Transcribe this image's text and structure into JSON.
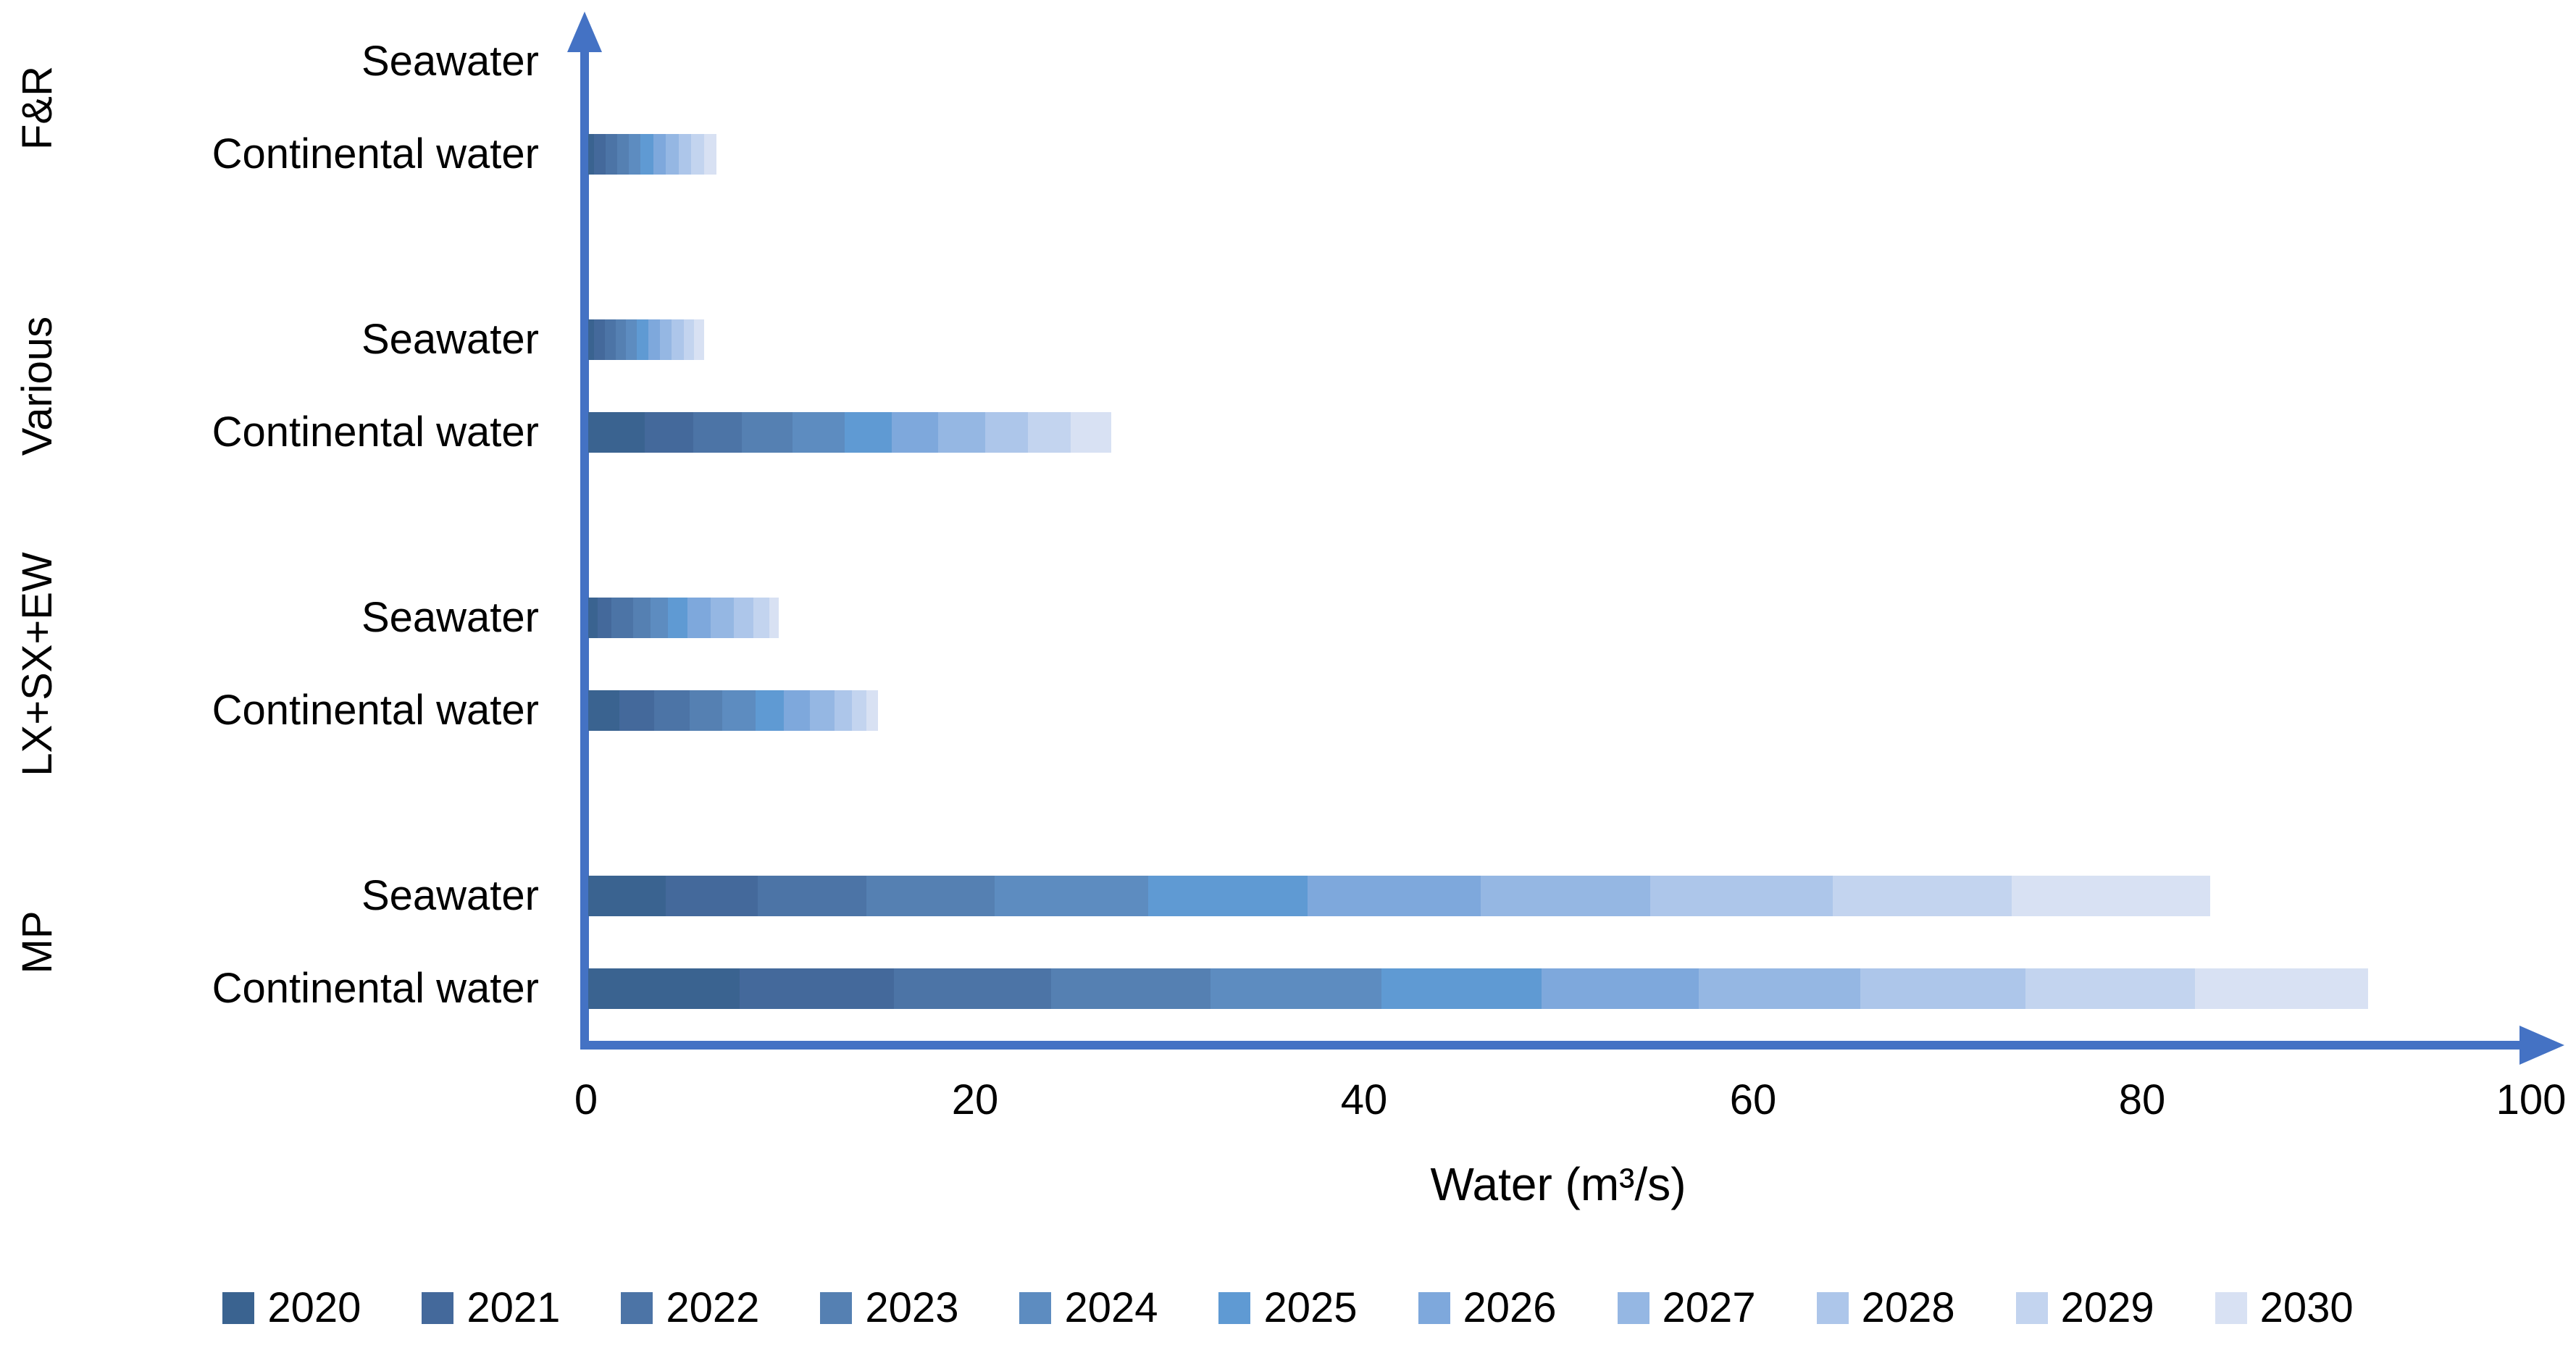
{
  "chart_data": {
    "type": "bar",
    "orientation": "horizontal",
    "stacked": true,
    "xlabel": "Water (m³/s)",
    "xlim": [
      0,
      100
    ],
    "xticks": [
      "0",
      "20",
      "40",
      "60",
      "80",
      "100"
    ],
    "grid": false,
    "legend_position": "bottom",
    "axis_color": "#4472C4",
    "series_years": [
      "2020",
      "2021",
      "2022",
      "2023",
      "2024",
      "2025",
      "2026",
      "2027",
      "2028",
      "2029",
      "2030"
    ],
    "series_colors": [
      "#3A6390",
      "#44699B",
      "#4C74A6",
      "#5580B2",
      "#5D8CC0",
      "#5F9AD3",
      "#7EA8DC",
      "#95B7E3",
      "#ADC6EA",
      "#C3D4EF",
      "#D8E1F3"
    ],
    "groups": [
      {
        "name": "F&R",
        "rows": [
          {
            "label": "Seawater",
            "values": [
              0,
              0,
              0,
              0,
              0,
              0,
              0,
              0,
              0,
              0,
              0
            ],
            "total": 0
          },
          {
            "label": "Continental water",
            "values": [
              0.3,
              0.6,
              0.6,
              0.6,
              0.6,
              0.65,
              0.65,
              0.65,
              0.65,
              0.65,
              0.65
            ],
            "total": 6.6
          }
        ]
      },
      {
        "name": "Various",
        "rows": [
          {
            "label": "Seawater",
            "values": [
              0.3,
              0.55,
              0.55,
              0.55,
              0.55,
              0.6,
              0.6,
              0.6,
              0.6,
              0.55,
              0.5
            ],
            "total": 6.0
          },
          {
            "label": "Continental water",
            "values": [
              2.9,
              2.5,
              2.5,
              2.6,
              2.7,
              2.4,
              2.4,
              2.4,
              2.2,
              2.2,
              2.1
            ],
            "total": 26.9
          }
        ]
      },
      {
        "name": "LX+SX+EW",
        "rows": [
          {
            "label": "Seawater",
            "values": [
              0.5,
              0.7,
              1.1,
              0.9,
              0.9,
              1.0,
              1.2,
              1.2,
              1.0,
              0.8,
              0.5
            ],
            "total": 9.8
          },
          {
            "label": "Continental water",
            "values": [
              1.6,
              1.8,
              1.8,
              1.7,
              1.7,
              1.45,
              1.35,
              1.25,
              0.9,
              0.75,
              0.6
            ],
            "total": 14.9
          }
        ]
      },
      {
        "name": "MP",
        "rows": [
          {
            "label": "Seawater",
            "values": [
              4.0,
              4.7,
              5.6,
              6.6,
              7.9,
              8.2,
              8.9,
              8.7,
              9.4,
              9.2,
              10.2
            ],
            "total": 83.4
          },
          {
            "label": "Continental water",
            "values": [
              7.8,
              7.9,
              8.1,
              8.2,
              8.8,
              8.2,
              8.1,
              8.3,
              8.5,
              8.7,
              8.9
            ],
            "total": 91.5
          }
        ]
      }
    ]
  }
}
